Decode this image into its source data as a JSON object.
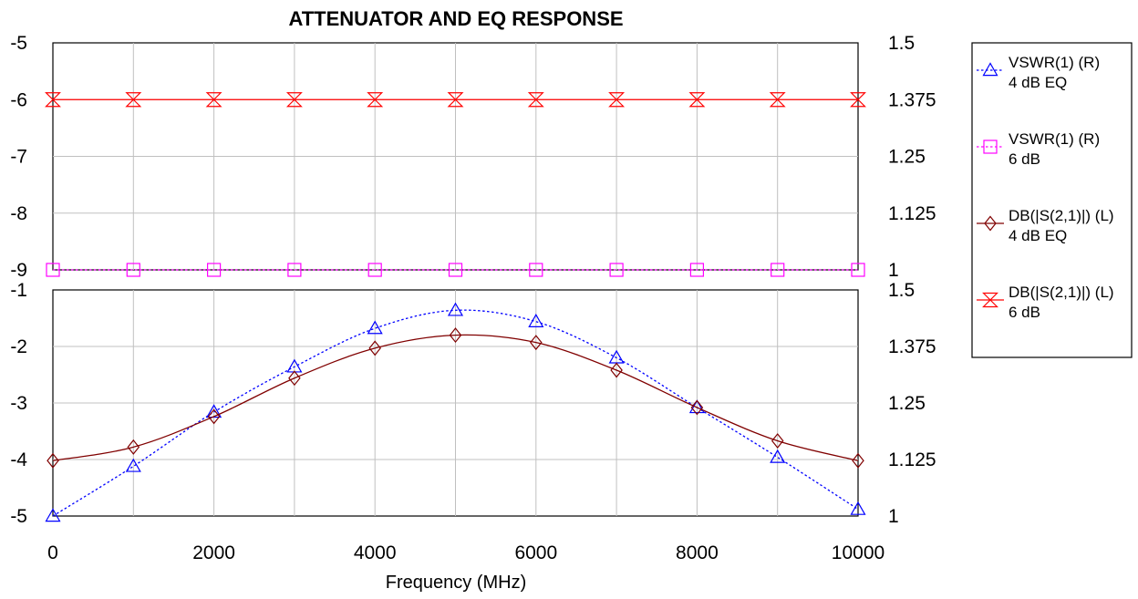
{
  "chart_data": {
    "type": "line",
    "title": "ATTENUATOR AND EQ RESPONSE",
    "xlabel": "Frequency (MHz)",
    "xlim": [
      0,
      10000
    ],
    "xticks": [
      0,
      2000,
      4000,
      6000,
      8000,
      10000
    ],
    "grid": true,
    "legend_position": "right",
    "panels": [
      {
        "name": "upper",
        "ylim_left": [
          -9,
          -5
        ],
        "yticks_left": [
          -9,
          -8,
          -7,
          -6,
          -5
        ],
        "ylim_right": [
          1,
          1.5
        ],
        "yticks_right": [
          "1",
          "1.125",
          "1.25",
          "1.375",
          "1.5"
        ],
        "series": [
          {
            "legend": [
              "DB(|S(2,1)|) (L)",
              "6 dB"
            ],
            "axis": "left",
            "color": "#ff0000",
            "line": "solid",
            "marker": "hourglass",
            "x": [
              0,
              1000,
              2000,
              3000,
              4000,
              5000,
              6000,
              7000,
              8000,
              9000,
              10000
            ],
            "values": [
              -6,
              -6,
              -6,
              -6,
              -6,
              -6,
              -6,
              -6,
              -6,
              -6,
              -6
            ]
          },
          {
            "legend": [
              "VSWR(1) (R)",
              "6 dB"
            ],
            "axis": "right",
            "color": "#ff00ff",
            "line": "dotted",
            "marker": "square",
            "x": [
              0,
              1000,
              2000,
              3000,
              4000,
              5000,
              6000,
              7000,
              8000,
              9000,
              10000
            ],
            "values": [
              1,
              1,
              1,
              1,
              1,
              1,
              1,
              1,
              1,
              1,
              1
            ]
          }
        ]
      },
      {
        "name": "lower",
        "ylim_left": [
          -5,
          -1
        ],
        "yticks_left": [
          -5,
          -4,
          -3,
          -2,
          -1
        ],
        "ylim_right": [
          1,
          1.5
        ],
        "yticks_right": [
          "1",
          "1.125",
          "1.25",
          "1.375",
          "1.5"
        ],
        "series": [
          {
            "legend": [
              "VSWR(1) (R)",
              "4 dB EQ"
            ],
            "axis": "right",
            "color": "#0000ff",
            "line": "dotted",
            "marker": "triangle",
            "x": [
              0,
              1000,
              2000,
              3000,
              4000,
              5000,
              6000,
              7000,
              8000,
              9000,
              10000
            ],
            "values": [
              1,
              1.11,
              1.23,
              1.33,
              1.415,
              1.455,
              1.43,
              1.35,
              1.24,
              1.13,
              1.015
            ]
          },
          {
            "legend": [
              "DB(|S(2,1)|) (L)",
              "4 dB EQ"
            ],
            "axis": "left",
            "color": "#800000",
            "line": "solid",
            "marker": "diamond",
            "x": [
              0,
              1000,
              2000,
              3000,
              4000,
              5000,
              6000,
              7000,
              8000,
              9000,
              10000
            ],
            "values": [
              -4.02,
              -3.78,
              -3.24,
              -2.56,
              -2.03,
              -1.8,
              -1.93,
              -2.42,
              -3.08,
              -3.67,
              -4.02
            ]
          }
        ]
      }
    ],
    "legend": [
      {
        "label1": "VSWR(1) (R)",
        "label2": "4 dB EQ",
        "color": "#0000ff",
        "line": "dotted",
        "marker": "triangle"
      },
      {
        "label1": "VSWR(1) (R)",
        "label2": "6 dB",
        "color": "#ff00ff",
        "line": "dotted",
        "marker": "square"
      },
      {
        "label1": "DB(|S(2,1)|) (L)",
        "label2": "4 dB EQ",
        "color": "#800000",
        "line": "solid",
        "marker": "diamond"
      },
      {
        "label1": "DB(|S(2,1)|) (L)",
        "label2": "6 dB",
        "color": "#ff0000",
        "line": "solid",
        "marker": "hourglass"
      }
    ]
  }
}
